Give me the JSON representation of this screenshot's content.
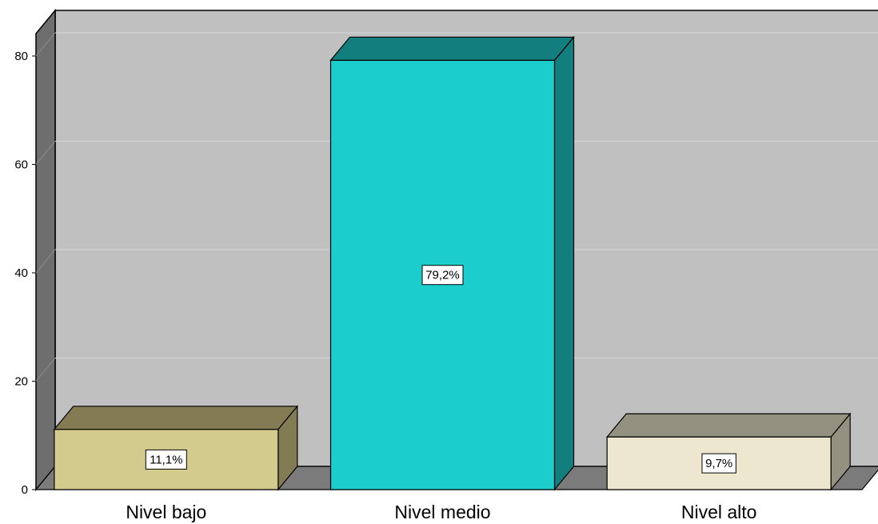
{
  "chart_data": {
    "type": "bar",
    "categories": [
      "Nivel bajo",
      "Nivel medio",
      "Nivel alto"
    ],
    "values": [
      11.1,
      79.2,
      9.7
    ],
    "data_labels": [
      "11,1%",
      "79,2%",
      "9,7%"
    ],
    "ylim": [
      0,
      80
    ],
    "yticks": [
      0,
      20,
      40,
      60,
      80
    ],
    "grid": true,
    "style": "3d",
    "colors": {
      "bars": [
        {
          "front": "#d3cb8e",
          "top": "#827b54",
          "side": "#827b54"
        },
        {
          "front": "#1ccdcd",
          "top": "#137e7e",
          "side": "#137e7e"
        },
        {
          "front": "#eee7d0",
          "top": "#959181",
          "side": "#959181"
        }
      ],
      "back_wall": "#c0c0c0",
      "side_wall": "#6e6e6e",
      "floor": "#7b7b7b",
      "gridline": "#d8d8d8"
    }
  }
}
